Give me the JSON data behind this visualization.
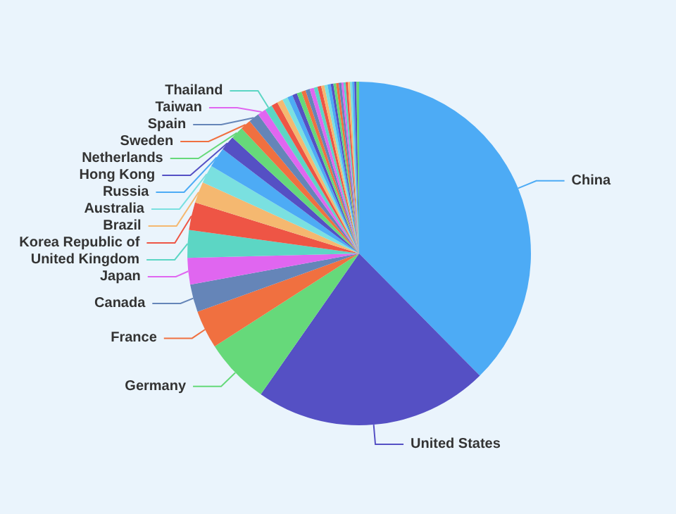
{
  "chart_data": {
    "type": "pie",
    "categories": [
      "China",
      "United States",
      "Germany",
      "France",
      "Canada",
      "Japan",
      "United Kingdom",
      "Korea Republic of",
      "Brazil",
      "Australia",
      "Russia",
      "Hong Kong",
      "Netherlands",
      "Sweden",
      "Spain",
      "Taiwan",
      "Thailand",
      null,
      null,
      null,
      null,
      null,
      null,
      null,
      null,
      null,
      null,
      null,
      null,
      null,
      null,
      null,
      null,
      null,
      null,
      null,
      null,
      null,
      null,
      null,
      null,
      null,
      null
    ],
    "values": [
      37.6,
      22.1,
      6.2,
      3.6,
      2.6,
      2.5,
      2.6,
      2.6,
      2.0,
      1.7,
      1.9,
      1.4,
      1.2,
      1.0,
      1.0,
      0.8,
      0.7,
      0.6,
      0.55,
      0.5,
      0.5,
      0.45,
      0.45,
      0.4,
      0.4,
      0.4,
      0.35,
      0.35,
      0.3,
      0.3,
      0.3,
      0.25,
      0.25,
      0.25,
      0.25,
      0.2,
      0.2,
      0.2,
      0.2,
      0.2,
      0.2,
      0.2,
      0.25
    ],
    "colors": [
      "#4dabf5",
      "#5550c4",
      "#66d97a",
      "#f07040",
      "#6585b8",
      "#e066f0",
      "#5cd6c4",
      "#ee5545",
      "#f5b870",
      "#7ae0e0",
      "#4dabf5",
      "#5550c4",
      "#66d97a",
      "#f07040",
      "#6585b8",
      "#e066f0",
      "#5cd6c4",
      "#ee5545",
      "#f5b870",
      "#7ae0e0",
      "#4dabf5",
      "#5550c4",
      "#66d97a",
      "#f07040",
      "#6585b8",
      "#e066f0",
      "#5cd6c4",
      "#ee5545",
      "#f5b870",
      "#7ae0e0",
      "#4dabf5",
      "#5550c4",
      "#66d97a",
      "#f07040",
      "#6585b8",
      "#e066f0",
      "#5cd6c4",
      "#ee5545",
      "#f5b870",
      "#7ae0e0",
      "#4dabf5",
      "#5550c4",
      "#66d97a"
    ],
    "legend": false
  }
}
